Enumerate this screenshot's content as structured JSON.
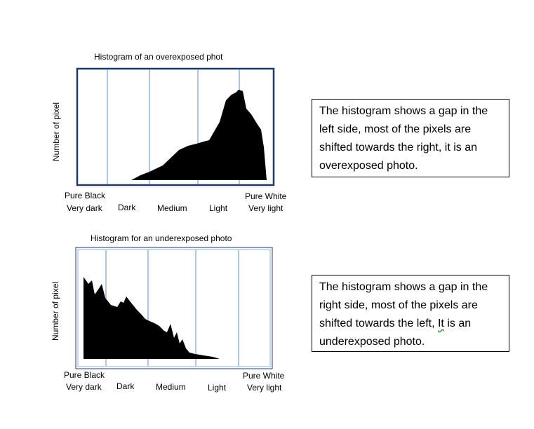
{
  "over": {
    "title": "Histogram of an overexposed phot",
    "ylabel": "Number of pixel",
    "top_labels": [
      "Pure Black",
      "Pure White"
    ],
    "bottom_labels": [
      "Very dark",
      "Dark",
      "Medium",
      "Light",
      "Very light"
    ],
    "description": {
      "line1": "The histogram shows a gap in the",
      "line2": "left side, most of the pixels are",
      "line3": "shifted towards the right, it is an",
      "line4": "overexposed photo."
    }
  },
  "under": {
    "title": "Histogram for an underexposed photo",
    "ylabel": "Number of pixel",
    "top_labels": [
      "Pure Black",
      "Pure White"
    ],
    "bottom_labels": [
      "Very dark",
      "Dark",
      "Medium",
      "Light",
      "Very light"
    ],
    "description": {
      "line1": "The histogram shows a gap in the",
      "line2": "right side, most of the pixels are",
      "line3a": "shifted towards the left, ",
      "line3b": "It",
      "line3c": " is an",
      "line4": "underexposed photo."
    }
  },
  "colors": {
    "frame": "#1f3864",
    "divider": "#5b8ec9",
    "fill": "#000000"
  }
}
